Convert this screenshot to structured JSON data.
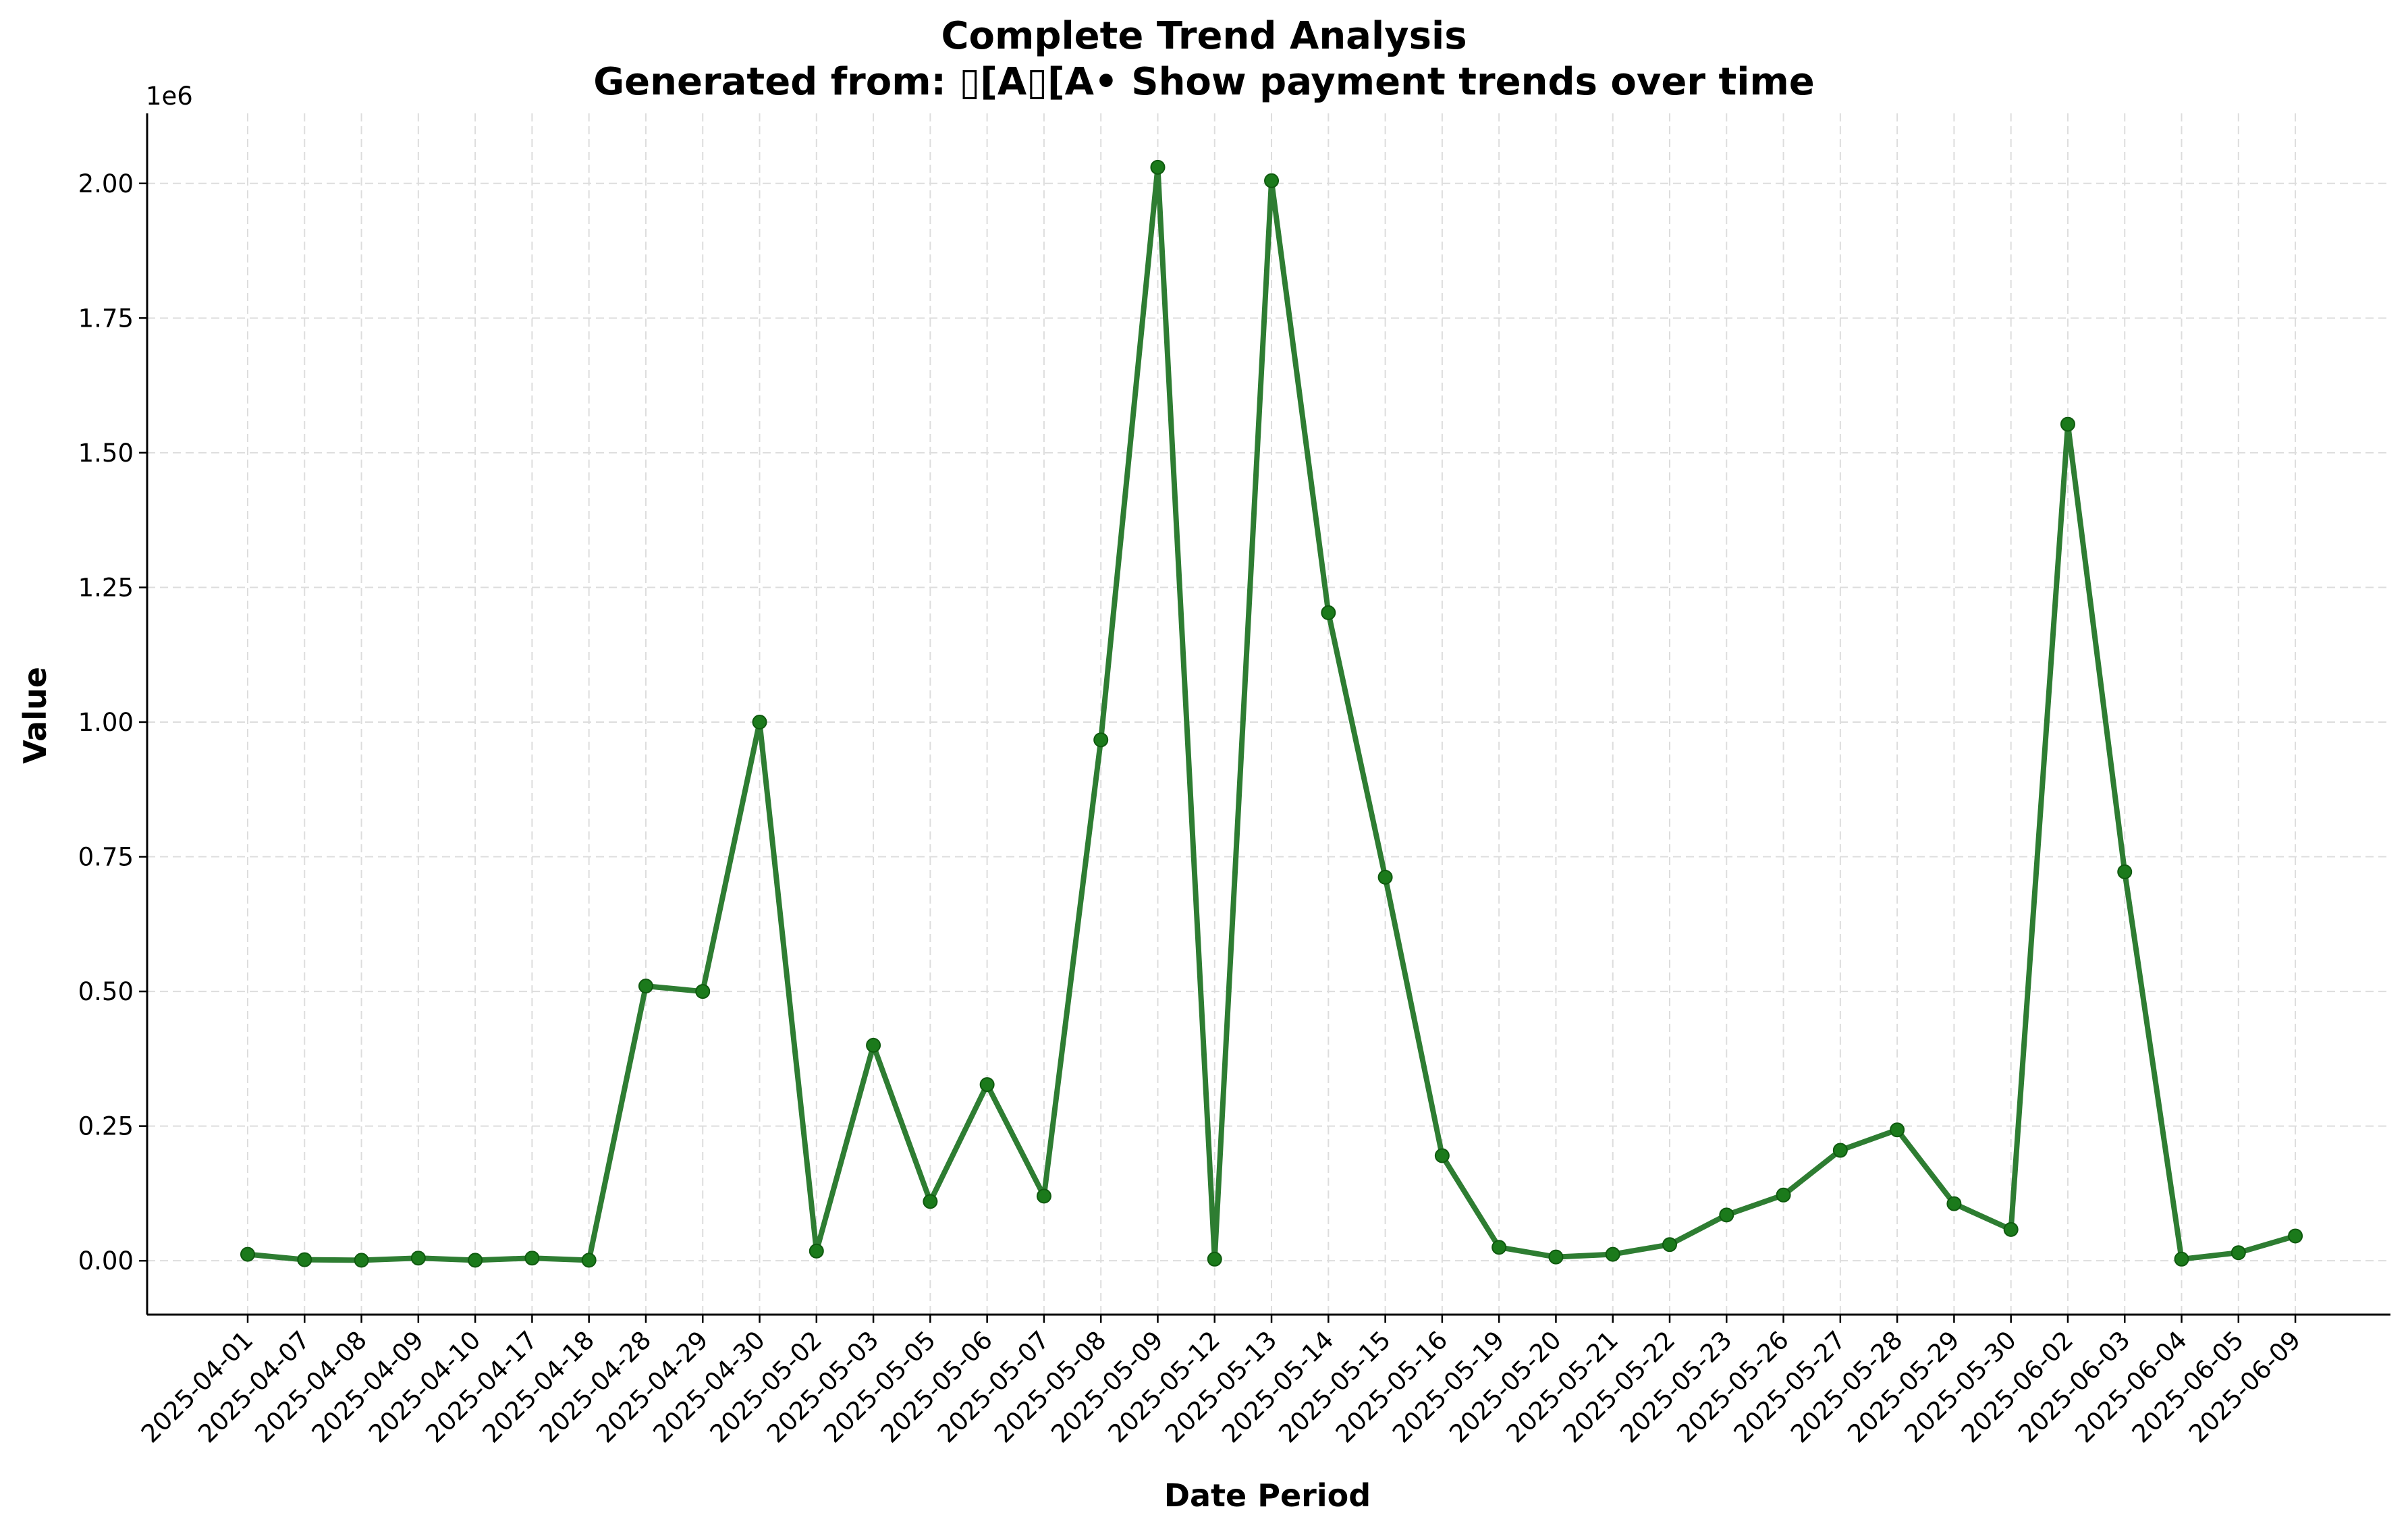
{
  "chart_data": {
    "type": "line",
    "title": "Complete Trend Analysis",
    "subtitle": "Generated from: ▯[A▯[A• Show payment trends over time",
    "xlabel": "Date Period",
    "ylabel": "Value",
    "y_offset_label": "1e6",
    "y_multiplier": 1000000,
    "ylim": [
      -100000,
      2130000
    ],
    "yticks": [
      0,
      250000,
      500000,
      750000,
      1000000,
      1250000,
      1500000,
      1750000,
      2000000
    ],
    "ytick_labels": [
      "0.00",
      "0.25",
      "0.50",
      "0.75",
      "1.00",
      "1.25",
      "1.50",
      "1.75",
      "2.00"
    ],
    "grid": true,
    "legend": "none",
    "color": "#2e7d32",
    "marker_color": "#1b7a1b",
    "x": [
      "2025-04-01",
      "2025-04-07",
      "2025-04-08",
      "2025-04-09",
      "2025-04-10",
      "2025-04-17",
      "2025-04-18",
      "2025-04-28",
      "2025-04-29",
      "2025-04-30",
      "2025-05-02",
      "2025-05-03",
      "2025-05-05",
      "2025-05-06",
      "2025-05-07",
      "2025-05-08",
      "2025-05-09",
      "2025-05-12",
      "2025-05-13",
      "2025-05-14",
      "2025-05-15",
      "2025-05-16",
      "2025-05-19",
      "2025-05-20",
      "2025-05-21",
      "2025-05-22",
      "2025-05-23",
      "2025-05-26",
      "2025-05-27",
      "2025-05-28",
      "2025-05-29",
      "2025-05-30",
      "2025-06-02",
      "2025-06-03",
      "2025-06-04",
      "2025-06-05",
      "2025-06-09"
    ],
    "values": [
      12000,
      2000,
      1000,
      5000,
      1000,
      5000,
      1000,
      510000,
      500000,
      1000000,
      18000,
      400000,
      110000,
      327000,
      120000,
      967000,
      2030000,
      3000,
      2005000,
      1203000,
      712000,
      195000,
      25000,
      7000,
      12000,
      30000,
      85000,
      122000,
      205000,
      243000,
      106000,
      58000,
      1553000,
      722000,
      3000,
      15000,
      46000
    ]
  }
}
